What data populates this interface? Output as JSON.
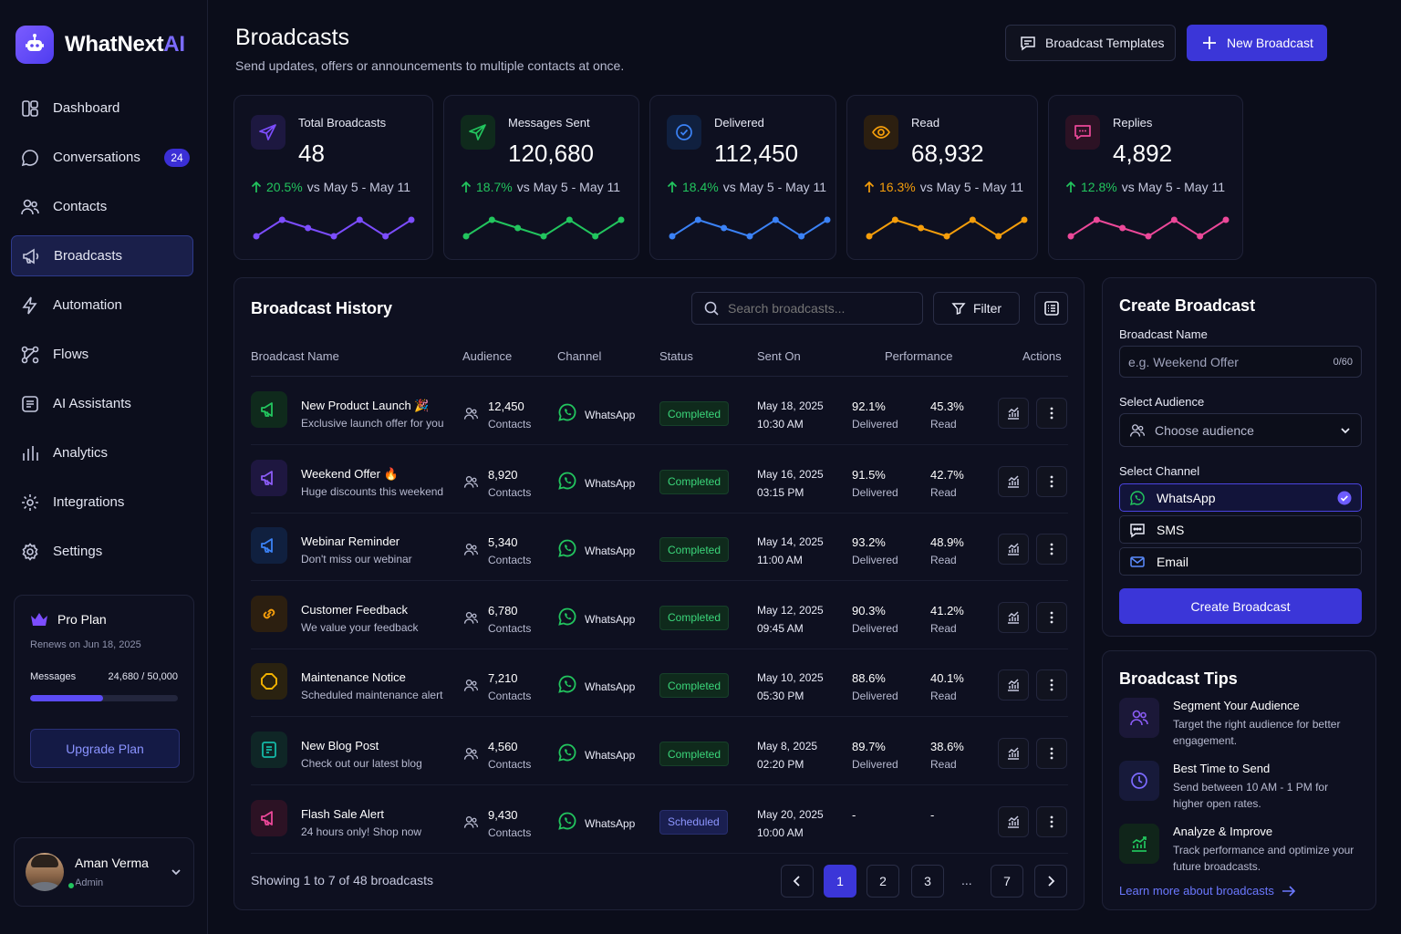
{
  "brand": {
    "name": "WhatNext",
    "name_suffix": "AI",
    "logo_icon": "robot-icon"
  },
  "sidebar": {
    "items": [
      {
        "label": "Dashboard",
        "icon": "dashboard-icon"
      },
      {
        "label": "Conversations",
        "icon": "chat-bubble-icon",
        "badge": "24"
      },
      {
        "label": "Contacts",
        "icon": "users-icon"
      },
      {
        "label": "Broadcasts",
        "icon": "megaphone-icon",
        "active": true
      },
      {
        "label": "Automation",
        "icon": "lightning-icon"
      },
      {
        "label": "Flows",
        "icon": "flow-icon"
      },
      {
        "label": "AI Assistants",
        "icon": "ai-assistant-icon"
      },
      {
        "label": "Analytics",
        "icon": "bar-chart-icon"
      },
      {
        "label": "Integrations",
        "icon": "gear-icon"
      },
      {
        "label": "Settings",
        "icon": "settings-icon"
      }
    ],
    "plan": {
      "title": "Pro Plan",
      "renews": "Renews on Jun 18, 2025",
      "usage_label": "Messages",
      "usage_value": "24,680 / 50,000",
      "usage_fraction": 0.4936,
      "upgrade_label": "Upgrade Plan"
    },
    "user": {
      "name": "Aman Verma",
      "role": "Admin",
      "online": true
    }
  },
  "header": {
    "title": "Broadcasts",
    "subtitle": "Send updates, offers or announcements to multiple contacts at once.",
    "templates_label": "Broadcast Templates",
    "new_label": "New Broadcast"
  },
  "stats": [
    {
      "label": "Total Broadcasts",
      "value": "48",
      "delta": "20.5%",
      "period": "vs May 5 - May 11",
      "color": "#7c4dff",
      "delta_color": "#22c55e",
      "icon": "paper-plane-icon",
      "trend": [
        2,
        4,
        3,
        2,
        4,
        2,
        4
      ]
    },
    {
      "label": "Messages Sent",
      "value": "120,680",
      "delta": "18.7%",
      "period": "vs May 5 - May 11",
      "color": "#22c55e",
      "delta_color": "#22c55e",
      "icon": "send-icon",
      "trend": [
        2,
        4,
        3,
        2,
        4,
        2,
        4
      ]
    },
    {
      "label": "Delivered",
      "value": "112,450",
      "delta": "18.4%",
      "period": "vs May 5 - May 11",
      "color": "#3b82f6",
      "delta_color": "#22c55e",
      "icon": "check-circle-icon",
      "trend": [
        2,
        4,
        3,
        2,
        4,
        2,
        4
      ]
    },
    {
      "label": "Read",
      "value": "68,932",
      "delta": "16.3%",
      "period": "vs May 5 - May 11",
      "color": "#f59e0b",
      "delta_color": "#f59e0b",
      "icon": "eye-icon",
      "trend": [
        2,
        4,
        3,
        2,
        4,
        2,
        4
      ]
    },
    {
      "label": "Replies",
      "value": "4,892",
      "delta": "12.8%",
      "period": "vs May 5 - May 11",
      "color": "#ec4899",
      "delta_color": "#22c55e",
      "icon": "reply-bubble-icon",
      "trend": [
        2,
        4,
        3,
        2,
        4,
        2,
        4
      ]
    }
  ],
  "history": {
    "title": "Broadcast History",
    "search_placeholder": "Search broadcasts...",
    "filter_label": "Filter",
    "columns": [
      "Broadcast Name",
      "Audience",
      "Channel",
      "Status",
      "Sent On",
      "Performance",
      "Actions"
    ],
    "rows": [
      {
        "name": "New Product Launch 🎉",
        "desc": "Exclusive launch offer for you",
        "audience": "12,450",
        "audience_sub": "Contacts",
        "channel": "WhatsApp",
        "status": "Completed",
        "status_kind": "completed",
        "date": "May 18, 2025",
        "time": "10:30 AM",
        "delivered": "92.1%",
        "delivered_label": "Delivered",
        "read": "45.3%",
        "read_label": "Read",
        "icon": "megaphone-icon",
        "icon_color": "#22c55e",
        "icon_bg": "#0f2a1c"
      },
      {
        "name": "Weekend Offer 🔥",
        "desc": "Huge discounts this weekend",
        "audience": "8,920",
        "audience_sub": "Contacts",
        "channel": "WhatsApp",
        "status": "Completed",
        "status_kind": "completed",
        "date": "May 16, 2025",
        "time": "03:15 PM",
        "delivered": "91.5%",
        "delivered_label": "Delivered",
        "read": "42.7%",
        "read_label": "Read",
        "icon": "megaphone-icon",
        "icon_color": "#8b5cf6",
        "icon_bg": "#1e1740"
      },
      {
        "name": "Webinar Reminder",
        "desc": "Don't miss our webinar",
        "audience": "5,340",
        "audience_sub": "Contacts",
        "channel": "WhatsApp",
        "status": "Completed",
        "status_kind": "completed",
        "date": "May 14, 2025",
        "time": "11:00 AM",
        "delivered": "93.2%",
        "delivered_label": "Delivered",
        "read": "48.9%",
        "read_label": "Read",
        "icon": "megaphone-icon",
        "icon_color": "#3b82f6",
        "icon_bg": "#10203f"
      },
      {
        "name": "Customer Feedback",
        "desc": "We value your feedback",
        "audience": "6,780",
        "audience_sub": "Contacts",
        "channel": "WhatsApp",
        "status": "Completed",
        "status_kind": "completed",
        "date": "May 12, 2025",
        "time": "09:45 AM",
        "delivered": "90.3%",
        "delivered_label": "Delivered",
        "read": "41.2%",
        "read_label": "Read",
        "icon": "link-icon",
        "icon_color": "#f59e0b",
        "icon_bg": "#2c1f10"
      },
      {
        "name": "Maintenance Notice",
        "desc": "Scheduled maintenance alert",
        "audience": "7,210",
        "audience_sub": "Contacts",
        "channel": "WhatsApp",
        "status": "Completed",
        "status_kind": "completed",
        "date": "May 10, 2025",
        "time": "05:30 PM",
        "delivered": "88.6%",
        "delivered_label": "Delivered",
        "read": "40.1%",
        "read_label": "Read",
        "icon": "octagon-icon",
        "icon_color": "#f5b400",
        "icon_bg": "#2a2210"
      },
      {
        "name": "New Blog Post",
        "desc": "Check out our latest blog",
        "audience": "4,560",
        "audience_sub": "Contacts",
        "channel": "WhatsApp",
        "status": "Completed",
        "status_kind": "completed",
        "date": "May 8, 2025",
        "time": "02:20 PM",
        "delivered": "89.7%",
        "delivered_label": "Delivered",
        "read": "38.6%",
        "read_label": "Read",
        "icon": "document-icon",
        "icon_color": "#14b8a6",
        "icon_bg": "#0f2626"
      },
      {
        "name": "Flash Sale Alert",
        "desc": "24 hours only! Shop now",
        "audience": "9,430",
        "audience_sub": "Contacts",
        "channel": "WhatsApp",
        "status": "Scheduled",
        "status_kind": "scheduled",
        "date": "May 20, 2025",
        "time": "10:00 AM",
        "delivered": "-",
        "delivered_label": "",
        "read": "-",
        "read_label": "",
        "icon": "megaphone-icon",
        "icon_color": "#ec4899",
        "icon_bg": "#2c1224"
      }
    ],
    "showing": "Showing 1 to 7 of 48 broadcasts",
    "pages": [
      "1",
      "2",
      "3",
      "7"
    ],
    "ellipsis": "...",
    "current_page": "1"
  },
  "create": {
    "title": "Create Broadcast",
    "name_label": "Broadcast Name",
    "name_placeholder": "e.g. Weekend Offer",
    "name_counter": "0/60",
    "audience_label": "Select Audience",
    "audience_placeholder": "Choose audience",
    "channel_label": "Select Channel",
    "channels": [
      {
        "label": "WhatsApp",
        "icon": "whatsapp-icon",
        "selected": true
      },
      {
        "label": "SMS",
        "icon": "sms-icon",
        "selected": false
      },
      {
        "label": "Email",
        "icon": "mail-icon",
        "selected": false
      }
    ],
    "submit_label": "Create Broadcast"
  },
  "tips": {
    "title": "Broadcast Tips",
    "items": [
      {
        "title": "Segment Your Audience",
        "text": "Target the right audience for better engagement.",
        "icon": "users-icon",
        "color": "#8b5cf6"
      },
      {
        "title": "Best Time to Send",
        "text": "Send between 10 AM - 1 PM for higher open rates.",
        "icon": "clock-icon",
        "color": "#6366f1"
      },
      {
        "title": "Analyze & Improve",
        "text": "Track performance and optimize your future broadcasts.",
        "icon": "growth-chart-icon",
        "color": "#22c55e"
      }
    ],
    "link_label": "Learn more about broadcasts"
  }
}
